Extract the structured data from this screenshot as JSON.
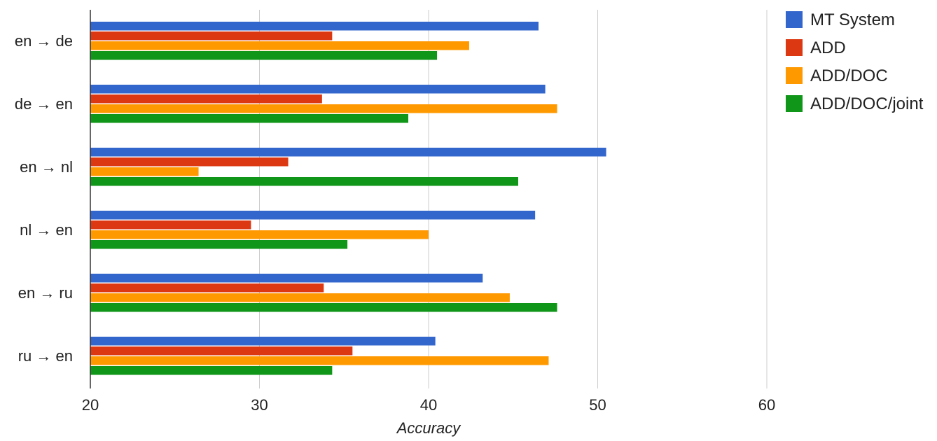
{
  "chart_data": {
    "type": "bar",
    "orientation": "horizontal",
    "title": "",
    "xlabel": "Accuracy",
    "ylabel": "",
    "xlim": [
      20,
      60
    ],
    "xticks": [
      "20",
      "30",
      "40",
      "50",
      "60"
    ],
    "grid": true,
    "legend_position": "right",
    "categories": [
      "en → de",
      "de → en",
      "en → nl",
      "nl → en",
      "en → ru",
      "ru → en"
    ],
    "series": [
      {
        "name": "MT System",
        "color": "#3366cc",
        "values": [
          46.5,
          46.9,
          50.5,
          46.3,
          43.2,
          40.4
        ]
      },
      {
        "name": "ADD",
        "color": "#dc3912",
        "values": [
          34.3,
          33.7,
          31.7,
          29.5,
          33.8,
          35.5
        ]
      },
      {
        "name": "ADD/DOC",
        "color": "#ff9900",
        "values": [
          42.4,
          47.6,
          26.4,
          40.0,
          44.8,
          47.1
        ]
      },
      {
        "name": "ADD/DOC/joint",
        "color": "#109618",
        "values": [
          40.5,
          38.8,
          45.3,
          35.2,
          47.6,
          34.3
        ]
      }
    ]
  }
}
